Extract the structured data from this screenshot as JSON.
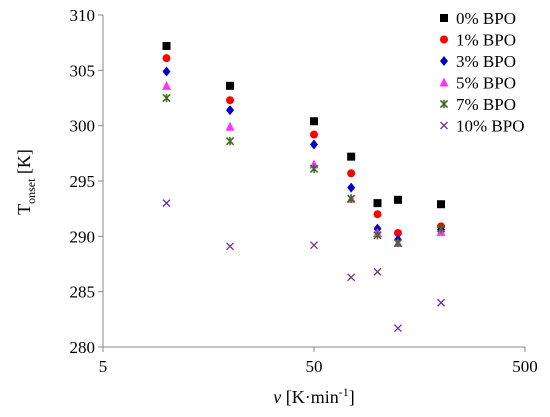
{
  "chart_data": {
    "type": "scatter",
    "xlabel": {
      "main": "v",
      "unit": " [K·min",
      "sup": "-1",
      "close": "]"
    },
    "ylabel": {
      "main": "T",
      "sub": "onset",
      "unit": " [K]"
    },
    "x_scale": "log",
    "xlim": [
      5,
      500
    ],
    "ylim": [
      280,
      310
    ],
    "x_ticks": [
      5,
      50,
      500
    ],
    "x_tick_labels": [
      "5",
      "50",
      "500"
    ],
    "y_ticks": [
      280,
      285,
      290,
      295,
      300,
      305,
      310
    ],
    "y_tick_labels": [
      "280",
      "285",
      "290",
      "295",
      "300",
      "305",
      "310"
    ],
    "grid": false,
    "legend_position": "top-right",
    "x": [
      10,
      20,
      50,
      75,
      100,
      125,
      200
    ],
    "series": [
      {
        "name": "0% BPO",
        "marker": "square",
        "color": "#000000",
        "values": [
          307.2,
          303.6,
          300.4,
          297.2,
          293.0,
          293.3,
          292.9
        ]
      },
      {
        "name": "1% BPO",
        "marker": "circle",
        "color": "#ff0000",
        "values": [
          306.1,
          302.3,
          299.2,
          295.7,
          292.0,
          290.3,
          290.9
        ]
      },
      {
        "name": "3% BPO",
        "marker": "diamond",
        "color": "#0000cc",
        "values": [
          304.9,
          301.4,
          298.3,
          294.4,
          290.7,
          289.7,
          290.6
        ]
      },
      {
        "name": "5% BPO",
        "marker": "triangle",
        "color": "#ff33ff",
        "values": [
          303.6,
          299.9,
          296.5,
          293.4,
          290.3,
          289.4,
          290.4
        ]
      },
      {
        "name": "7% BPO",
        "marker": "asterisk",
        "color": "#3d6b1f",
        "values": [
          302.5,
          298.6,
          296.1,
          293.4,
          290.1,
          289.4,
          290.7
        ]
      },
      {
        "name": "10% BPO",
        "marker": "x",
        "color": "#7030a0",
        "values": [
          293.0,
          289.1,
          289.2,
          286.3,
          286.8,
          281.7,
          284.0
        ]
      }
    ]
  }
}
